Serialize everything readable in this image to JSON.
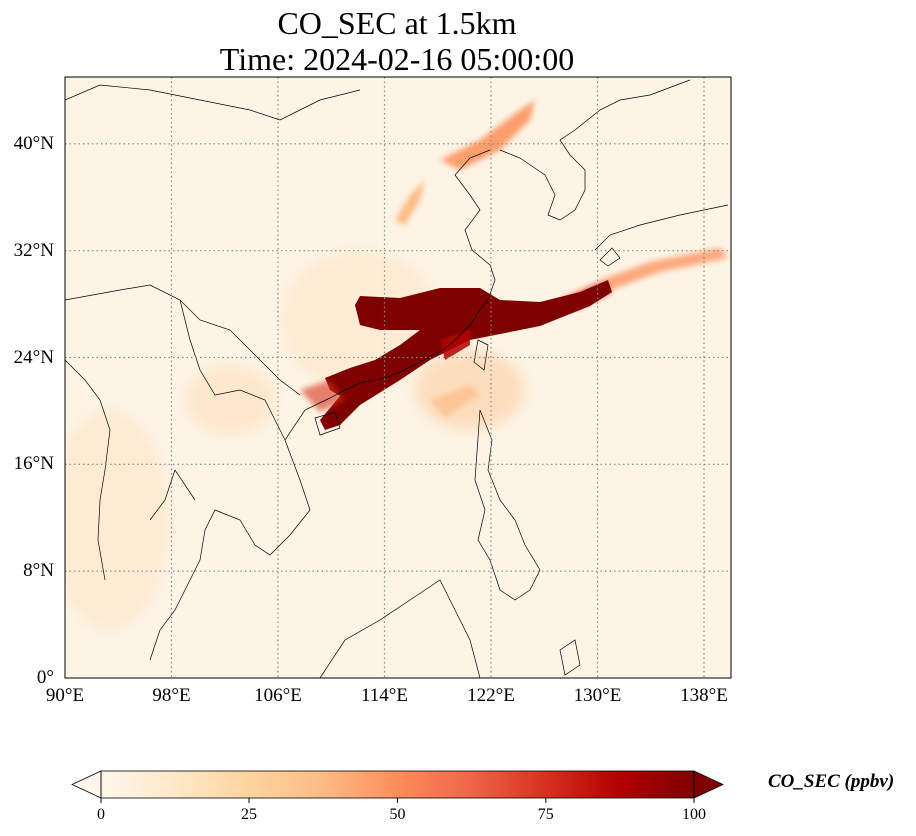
{
  "title": {
    "line1": "CO_SEC at 1.5km",
    "line2": "Time: 2024-02-16 05:00:00"
  },
  "map": {
    "projection": "PlateCarree",
    "lon_range": [
      90,
      140
    ],
    "lat_range": [
      0,
      45
    ],
    "gridlines": "dotted",
    "x_ticks": [
      "90°E",
      "98°E",
      "106°E",
      "114°E",
      "122°E",
      "130°E",
      "138°E"
    ],
    "y_ticks": [
      "0°",
      "8°N",
      "16°N",
      "24°N",
      "32°N",
      "40°N"
    ],
    "field": "CO_SEC",
    "level": "1.5km",
    "colormap": "OrRd"
  },
  "colorbar": {
    "label": "CO_SEC (ppbv)",
    "ticks": [
      "0",
      "25",
      "50",
      "75",
      "100"
    ],
    "range": [
      0,
      100
    ],
    "extend": "both",
    "colors": [
      "#fff7ec",
      "#fee8c8",
      "#fdd49e",
      "#fdbb84",
      "#fc8d59",
      "#ef6548",
      "#d7301f",
      "#b30000",
      "#7f0000"
    ]
  }
}
